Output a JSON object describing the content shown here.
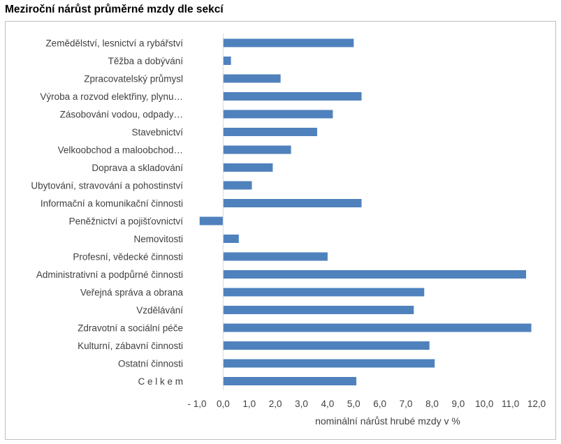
{
  "chart_data": {
    "type": "bar",
    "orientation": "horizontal",
    "title": "Meziroční nárůst průměrné mzdy dle sekcí",
    "xlabel": "nominální nárůst hrubé mzdy v %",
    "ylabel": "",
    "xlim": [
      -1.0,
      12.0
    ],
    "xticks": [
      -1.0,
      0.0,
      1.0,
      2.0,
      3.0,
      4.0,
      5.0,
      6.0,
      7.0,
      8.0,
      9.0,
      10.0,
      11.0,
      12.0
    ],
    "xtick_labels": [
      "- 1,0",
      "0,0",
      "1,0",
      "2,0",
      "3,0",
      "4,0",
      "5,0",
      "6,0",
      "7,0",
      "8,0",
      "9,0",
      "10,0",
      "11,0",
      "12,0"
    ],
    "grid": false,
    "legend": "none",
    "bar_color": "#4f81bd",
    "categories": [
      "Zemědělství, lesnictví a rybářství",
      "Těžba a dobývání",
      "Zpracovatelský průmysl",
      "Výroba a rozvod elektřiny, plynu…",
      "Zásobování vodou, odpady…",
      "Stavebnictví",
      "Velkoobchod a maloobchod…",
      "Doprava a skladování",
      "Ubytování, stravování a pohostinství",
      "Informační a komunikační činnosti",
      "Peněžnictví a pojišťovnictví",
      "Nemovitosti",
      "Profesní, vědecké činnosti",
      "Administrativní a podpůrné činnosti",
      "Veřejná správa a obrana",
      "Vzdělávání",
      "Zdravotní a sociální péče",
      "Kulturní, zábavní činnosti",
      "Ostatní činnosti",
      "C e l k e m"
    ],
    "values": [
      5.0,
      0.3,
      2.2,
      5.3,
      4.2,
      3.6,
      2.6,
      1.9,
      1.1,
      5.3,
      -0.9,
      0.6,
      4.0,
      11.6,
      7.7,
      7.3,
      11.8,
      7.9,
      8.1,
      5.1
    ]
  }
}
